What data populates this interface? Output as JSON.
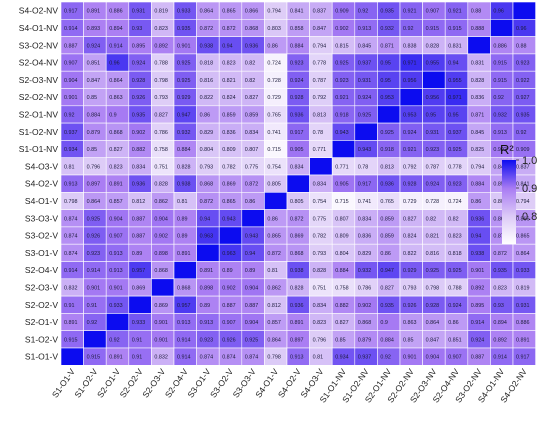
{
  "chart_data": {
    "type": "heatmap",
    "colorbar": {
      "title": "R²",
      "range": [
        0.7,
        1.0
      ],
      "ticks": [
        "1.0",
        "0.9",
        "0.8"
      ],
      "tick_values": [
        1.0,
        0.9,
        0.8
      ],
      "colors": {
        "low": "#ffffff",
        "mid": "#a97cf3",
        "high": "#0c0cf0"
      }
    },
    "row_labels": [
      "S4-O2-NV",
      "S4-O1-NV",
      "S3-O2-NV",
      "S2-O4-NV",
      "S2-O3-NV",
      "S2-O2-NV",
      "S2-O1-NV",
      "S1-O2-NV",
      "S1-O1-NV",
      "S4-O3-V",
      "S4-O2-V",
      "S4-O1-V",
      "S3-O3-V",
      "S3-O2-V",
      "S3-O1-V",
      "S2-O4-V",
      "S2-O3-V",
      "S2-O2-V",
      "S2-O1-V",
      "S1-O2-V",
      "S1-O1-V"
    ],
    "col_labels": [
      "S1-O1-V",
      "S1-O2-V",
      "S2-O1-V",
      "S2-O2-V",
      "S2-O3-V",
      "S2-O4-V",
      "S3-O1-V",
      "S3-O2-V",
      "S3-O3-V",
      "S4-O1-V",
      "S4-O2-V",
      "S4-O3-V",
      "S1-O1-NV",
      "S1-O2-NV",
      "S2-O1-NV",
      "S2-O2-NV",
      "S2-O3-NV",
      "S2-O4-NV",
      "S3-O2-NV",
      "S4-O1-NV",
      "S4-O2-NV"
    ],
    "values": [
      [
        0.917,
        0.891,
        0.886,
        0.931,
        0.819,
        0.933,
        0.864,
        0.865,
        0.866,
        0.794,
        0.841,
        0.837,
        0.909,
        0.92,
        0.935,
        0.921,
        0.907,
        0.921,
        0.88,
        0.96,
        null
      ],
      [
        0.914,
        0.893,
        0.894,
        0.93,
        0.823,
        0.935,
        0.872,
        0.872,
        0.868,
        0.803,
        0.858,
        0.847,
        0.902,
        0.913,
        0.932,
        0.92,
        0.915,
        0.915,
        0.888,
        null,
        0.96
      ],
      [
        0.887,
        0.924,
        0.914,
        0.895,
        0.892,
        0.901,
        0.938,
        0.94,
        0.936,
        0.86,
        0.884,
        0.794,
        0.815,
        0.845,
        0.871,
        0.838,
        0.828,
        0.831,
        null,
        0.886,
        0.88
      ],
      [
        0.907,
        0.851,
        0.96,
        0.924,
        0.788,
        0.925,
        0.818,
        0.823,
        0.82,
        0.724,
        0.923,
        0.778,
        0.925,
        0.937,
        0.95,
        0.971,
        0.955,
        0.94,
        0.831,
        0.915,
        0.923
      ],
      [
        0.904,
        0.847,
        0.864,
        0.928,
        0.798,
        0.925,
        0.816,
        0.821,
        0.82,
        0.728,
        0.924,
        0.787,
        0.923,
        0.931,
        0.95,
        0.956,
        null,
        0.955,
        0.828,
        0.915,
        0.922
      ],
      [
        0.901,
        0.85,
        0.863,
        0.926,
        0.793,
        0.929,
        0.822,
        0.824,
        0.827,
        0.729,
        0.928,
        0.792,
        0.921,
        0.924,
        0.953,
        null,
        0.956,
        0.971,
        0.836,
        0.92,
        0.927
      ],
      [
        0.92,
        0.884,
        0.9,
        0.935,
        0.827,
        0.947,
        0.86,
        0.859,
        0.859,
        0.765,
        0.936,
        0.813,
        0.918,
        0.925,
        null,
        0.953,
        0.95,
        0.95,
        0.871,
        0.932,
        0.935
      ],
      [
        0.937,
        0.879,
        0.868,
        0.902,
        0.786,
        0.932,
        0.829,
        0.836,
        0.834,
        0.741,
        0.917,
        0.78,
        0.943,
        null,
        0.925,
        0.924,
        0.931,
        0.937,
        0.845,
        0.913,
        0.92
      ],
      [
        0.934,
        0.85,
        0.827,
        0.882,
        0.758,
        0.884,
        0.804,
        0.809,
        0.807,
        0.715,
        0.905,
        0.771,
        null,
        0.943,
        0.918,
        0.921,
        0.923,
        0.925,
        0.825,
        0.902,
        0.909
      ],
      [
        0.81,
        0.796,
        0.823,
        0.834,
        0.751,
        0.828,
        0.793,
        0.782,
        0.775,
        0.754,
        0.834,
        null,
        0.771,
        0.78,
        0.813,
        0.792,
        0.787,
        0.778,
        0.794,
        0.847,
        0.837
      ],
      [
        0.913,
        0.897,
        0.891,
        0.936,
        0.828,
        0.938,
        0.868,
        0.869,
        0.872,
        0.805,
        null,
        0.834,
        0.905,
        0.917,
        0.936,
        0.928,
        0.924,
        0.923,
        0.884,
        0.858,
        0.841
      ],
      [
        0.798,
        0.864,
        0.857,
        0.812,
        0.862,
        0.81,
        0.872,
        0.865,
        0.86,
        null,
        0.805,
        0.754,
        0.715,
        0.741,
        0.765,
        0.729,
        0.728,
        0.724,
        0.86,
        0.803,
        0.794
      ],
      [
        0.874,
        0.925,
        0.904,
        0.887,
        0.904,
        0.89,
        0.94,
        0.943,
        null,
        0.86,
        0.872,
        0.775,
        0.807,
        0.834,
        0.859,
        0.827,
        0.82,
        0.82,
        0.936,
        0.868,
        0.866
      ],
      [
        0.874,
        0.926,
        0.907,
        0.887,
        0.902,
        0.89,
        0.963,
        null,
        0.943,
        0.865,
        0.869,
        0.782,
        0.809,
        0.836,
        0.859,
        0.824,
        0.821,
        0.823,
        0.94,
        0.872,
        0.865
      ],
      [
        0.874,
        0.923,
        0.913,
        0.89,
        0.898,
        0.891,
        null,
        0.963,
        0.94,
        0.872,
        0.868,
        0.793,
        0.804,
        0.829,
        0.86,
        0.822,
        0.816,
        0.818,
        0.938,
        0.872,
        0.864
      ],
      [
        0.914,
        0.914,
        0.913,
        0.957,
        0.868,
        null,
        0.891,
        0.89,
        0.89,
        0.81,
        0.938,
        0.828,
        0.884,
        0.932,
        0.947,
        0.929,
        0.925,
        0.925,
        0.901,
        0.935,
        0.933
      ],
      [
        0.832,
        0.901,
        0.901,
        0.869,
        null,
        0.868,
        0.898,
        0.902,
        0.904,
        0.862,
        0.828,
        0.751,
        0.758,
        0.786,
        0.827,
        0.793,
        0.798,
        0.788,
        0.892,
        0.823,
        0.819
      ],
      [
        0.91,
        0.91,
        0.933,
        null,
        0.869,
        0.957,
        0.89,
        0.887,
        0.887,
        0.812,
        0.936,
        0.834,
        0.882,
        0.902,
        0.935,
        0.926,
        0.928,
        0.924,
        0.895,
        0.93,
        0.931
      ],
      [
        0.891,
        0.92,
        null,
        0.933,
        0.901,
        0.913,
        0.913,
        0.907,
        0.904,
        0.857,
        0.891,
        0.823,
        0.827,
        0.868,
        0.9,
        0.863,
        0.864,
        0.86,
        0.914,
        0.894,
        0.886
      ],
      [
        0.915,
        null,
        0.92,
        0.91,
        0.901,
        0.914,
        0.923,
        0.926,
        0.925,
        0.864,
        0.897,
        0.796,
        0.85,
        0.879,
        0.884,
        0.85,
        0.847,
        0.851,
        0.924,
        0.892,
        0.891
      ],
      [
        null,
        0.915,
        0.891,
        0.91,
        0.832,
        0.914,
        0.874,
        0.874,
        0.874,
        0.798,
        0.913,
        0.81,
        0.934,
        0.937,
        0.92,
        0.901,
        0.904,
        0.907,
        0.887,
        0.914,
        0.917
      ]
    ]
  }
}
